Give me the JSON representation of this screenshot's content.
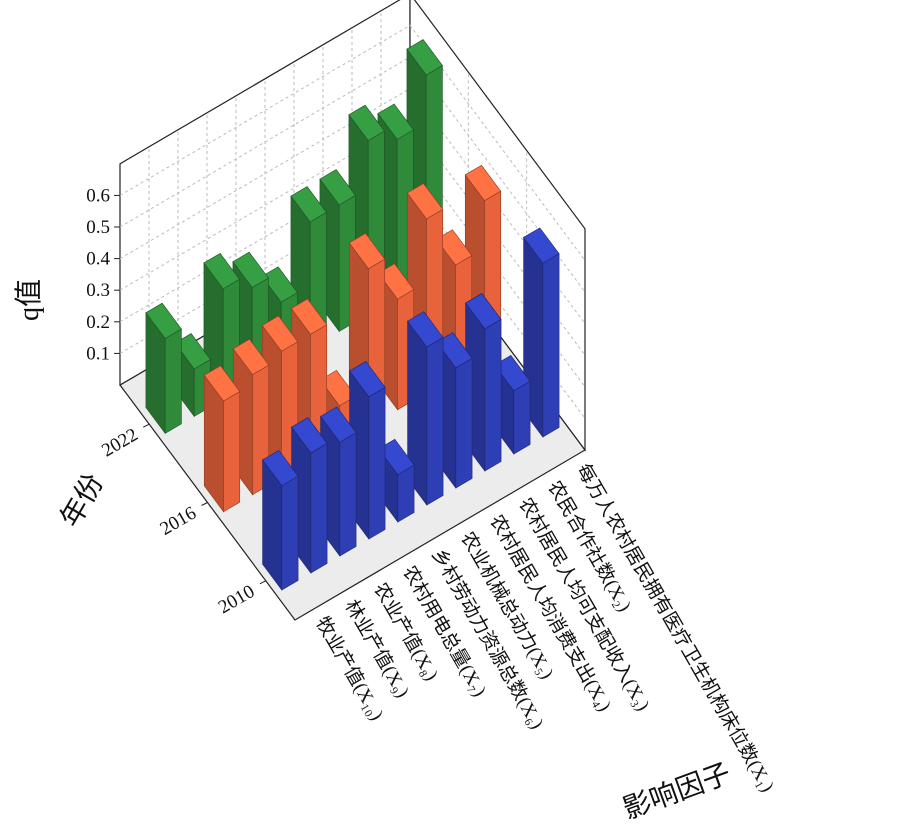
{
  "chart_data": {
    "type": "bar3d",
    "x_label": "影响因子",
    "y_label": "年份",
    "z_label": "q值",
    "categories": [
      "牧业产值(X₁₀)",
      "林业产值(X₉)",
      "农业产值(X₈)",
      "农村用电总量(X₇)",
      "乡村劳动力资源总数(X₆)",
      "农业机械总动力(X₅)",
      "农村居民人均消费支出(X₄)",
      "农村居民人均可支配收入(X₃)",
      "农民合作社数(X₂)",
      "每万人农村居民拥有医疗卫生机构床位数(X₁)"
    ],
    "series": [
      {
        "name": "2010",
        "color": "#2e3fb5",
        "values": [
          0.33,
          0.38,
          0.36,
          0.45,
          0.15,
          0.5,
          0.38,
          0.45,
          0.2,
          0.55
        ]
      },
      {
        "name": "2016",
        "color": "#e8633b",
        "values": [
          0.35,
          0.38,
          0.4,
          0.4,
          0.12,
          0.5,
          0.35,
          0.55,
          0.35,
          0.5
        ]
      },
      {
        "name": "2022",
        "color": "#2f8a3a",
        "values": [
          0.3,
          0.15,
          0.35,
          0.3,
          0.2,
          0.4,
          0.4,
          0.55,
          0.5,
          0.65
        ]
      }
    ],
    "ylim": [
      0,
      0.7
    ],
    "yticks": [
      0.1,
      0.2,
      0.3,
      0.4,
      0.5,
      0.6
    ],
    "grid": true
  }
}
